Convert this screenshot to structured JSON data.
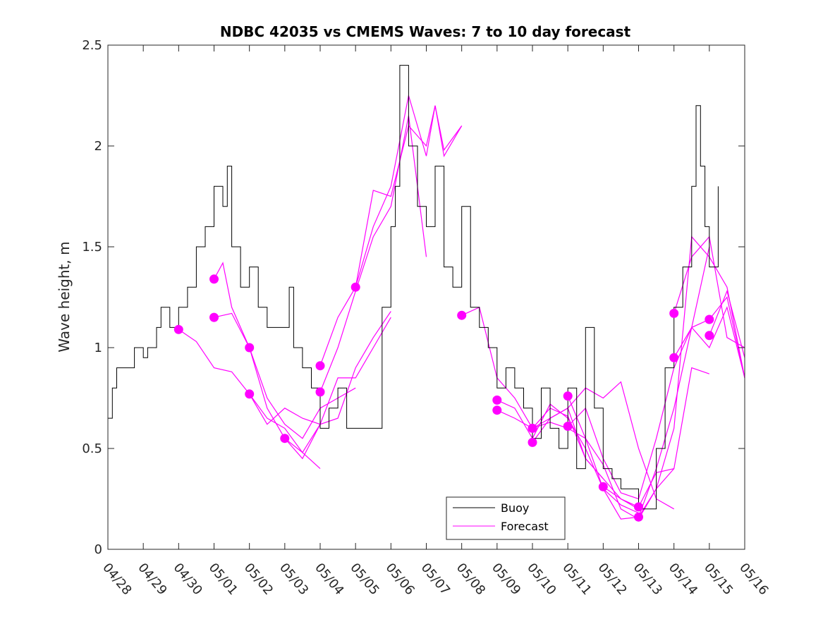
{
  "chart_data": {
    "type": "line",
    "title": "NDBC 42035 vs CMEMS Waves: 7 to 10 day forecast",
    "xlabel": "",
    "ylabel": "Wave height, m",
    "xlim": [
      "04/28",
      "05/16"
    ],
    "ylim": [
      0,
      2.5
    ],
    "x_ticks": [
      "04/28",
      "04/29",
      "04/30",
      "05/01",
      "05/02",
      "05/03",
      "05/04",
      "05/05",
      "05/06",
      "05/07",
      "05/08",
      "05/09",
      "05/10",
      "05/11",
      "05/12",
      "05/13",
      "05/14",
      "05/15",
      "05/16"
    ],
    "y_ticks": [
      "0",
      "0.5",
      "1",
      "1.5",
      "2",
      "2.5"
    ],
    "grid": false,
    "legend": {
      "position": "bottom-center",
      "entries": [
        "Buoy",
        "Forecast"
      ]
    },
    "colors": {
      "buoy": "#000000",
      "forecast": "#ff00ff"
    },
    "series": [
      {
        "name": "Buoy",
        "x": [
          "04/28 00:00",
          "04/28 03:00",
          "04/28 06:00",
          "04/28 09:00",
          "04/28 18:00",
          "04/29 00:00",
          "04/29 03:00",
          "04/29 09:00",
          "04/29 12:00",
          "04/29 18:00",
          "04/30 00:00",
          "04/30 06:00",
          "04/30 12:00",
          "04/30 18:00",
          "05/01 00:00",
          "05/01 06:00",
          "05/01 09:00",
          "05/01 12:00",
          "05/01 18:00",
          "05/02 00:00",
          "05/02 06:00",
          "05/02 12:00",
          "05/02 18:00",
          "05/03 00:00",
          "05/03 03:00",
          "05/03 06:00",
          "05/03 12:00",
          "05/03 18:00",
          "05/04 00:00",
          "05/04 06:00",
          "05/04 12:00",
          "05/04 18:00",
          "05/05 00:00",
          "05/05 12:00",
          "05/05 18:00",
          "05/06 00:00",
          "05/06 03:00",
          "05/06 06:00",
          "05/06 12:00",
          "05/06 18:00",
          "05/07 00:00",
          "05/07 06:00",
          "05/07 12:00",
          "05/07 18:00",
          "05/08 00:00",
          "05/08 06:00",
          "05/08 12:00",
          "05/08 18:00",
          "05/09 00:00",
          "05/09 06:00",
          "05/09 12:00",
          "05/09 18:00",
          "05/10 00:00",
          "05/10 06:00",
          "05/10 12:00",
          "05/10 18:00",
          "05/11 00:00",
          "05/11 06:00",
          "05/11 12:00",
          "05/11 18:00",
          "05/12 00:00",
          "05/12 06:00",
          "05/12 12:00",
          "05/12 18:00",
          "05/13 00:00",
          "05/13 06:00",
          "05/13 12:00",
          "05/13 18:00",
          "05/14 00:00",
          "05/14 06:00",
          "05/14 12:00",
          "05/14 15:00",
          "05/14 18:00",
          "05/14 21:00",
          "05/15 00:00",
          "05/15 06:00"
        ],
        "values": [
          0.65,
          0.8,
          0.9,
          0.9,
          1.0,
          0.95,
          1.0,
          1.1,
          1.2,
          1.1,
          1.2,
          1.3,
          1.5,
          1.6,
          1.8,
          1.7,
          1.9,
          1.5,
          1.3,
          1.4,
          1.2,
          1.1,
          1.1,
          1.1,
          1.3,
          1.0,
          0.9,
          0.8,
          0.6,
          0.7,
          0.8,
          0.6,
          0.6,
          0.6,
          1.2,
          1.6,
          1.8,
          2.4,
          2.0,
          1.7,
          1.6,
          1.9,
          1.4,
          1.3,
          1.7,
          1.2,
          1.1,
          1.0,
          0.8,
          0.9,
          0.8,
          0.7,
          0.55,
          0.8,
          0.6,
          0.5,
          0.8,
          0.4,
          1.1,
          0.7,
          0.4,
          0.35,
          0.3,
          0.3,
          0.2,
          0.2,
          0.5,
          0.9,
          1.2,
          1.4,
          1.8,
          2.2,
          1.9,
          1.6,
          1.4,
          1.8
        ]
      },
      {
        "name": "Forecast",
        "lines": [
          {
            "x": [
              "04/30 00:00",
              "04/30 12:00",
              "05/01 00:00",
              "05/01 12:00",
              "05/02 00:00",
              "05/02 12:00",
              "05/03 00:00",
              "05/03 12:00",
              "05/04 00:00"
            ],
            "values": [
              1.09,
              1.03,
              0.9,
              0.88,
              0.77,
              0.65,
              0.6,
              0.48,
              0.4
            ]
          },
          {
            "x": [
              "05/01 00:00",
              "05/01 06:00",
              "05/01 12:00",
              "05/02 00:00",
              "05/02 12:00",
              "05/03 00:00",
              "05/03 12:00",
              "05/04 00:00"
            ],
            "values": [
              1.34,
              1.42,
              1.2,
              1.0,
              0.7,
              0.55,
              0.48,
              0.62
            ]
          },
          {
            "x": [
              "05/01 00:00",
              "05/01 12:00",
              "05/02 00:00",
              "05/02 12:00",
              "05/03 00:00",
              "05/03 12:00",
              "05/04 00:00",
              "05/04 12:00",
              "05/05 00:00"
            ],
            "values": [
              1.15,
              1.17,
              1.0,
              0.75,
              0.62,
              0.55,
              0.7,
              0.75,
              0.8
            ]
          },
          {
            "x": [
              "05/02 00:00",
              "05/02 12:00",
              "05/03 00:00",
              "05/03 12:00",
              "05/04 00:00",
              "05/04 12:00",
              "05/05 00:00",
              "05/05 12:00",
              "05/06 00:00"
            ],
            "values": [
              0.77,
              0.62,
              0.7,
              0.65,
              0.62,
              0.65,
              0.9,
              1.05,
              1.18
            ]
          },
          {
            "x": [
              "05/03 00:00",
              "05/03 12:00",
              "05/04 00:00",
              "05/04 12:00",
              "05/05 00:00",
              "05/05 12:00",
              "05/06 00:00"
            ],
            "values": [
              0.55,
              0.45,
              0.62,
              0.85,
              0.85,
              1.0,
              1.15
            ]
          },
          {
            "x": [
              "05/04 00:00",
              "05/04 12:00",
              "05/05 00:00",
              "05/05 12:00",
              "05/06 00:00",
              "05/06 12:00",
              "05/07 00:00"
            ],
            "values": [
              0.78,
              1.0,
              1.28,
              1.55,
              1.7,
              2.15,
              1.45
            ]
          },
          {
            "x": [
              "05/04 00:00",
              "05/04 12:00",
              "05/05 00:00",
              "05/05 12:00",
              "05/06 00:00",
              "05/06 12:00",
              "05/07 00:00",
              "05/07 06:00",
              "05/07 12:00",
              "05/08 00:00"
            ],
            "values": [
              0.91,
              1.15,
              1.3,
              1.6,
              1.8,
              2.25,
              1.95,
              2.2,
              1.95,
              2.1
            ]
          },
          {
            "x": [
              "05/05 00:00",
              "05/05 12:00",
              "05/06 00:00",
              "05/06 12:00",
              "05/07 00:00",
              "05/07 06:00",
              "05/07 12:00",
              "05/08 00:00"
            ],
            "values": [
              1.3,
              1.78,
              1.75,
              2.1,
              2.0,
              2.2,
              1.98,
              2.1
            ]
          },
          {
            "x": [
              "05/08 00:00",
              "05/08 12:00",
              "05/09 00:00",
              "05/09 12:00",
              "05/10 00:00",
              "05/10 12:00",
              "05/11 00:00",
              "05/11 12:00",
              "05/12 00:00"
            ],
            "values": [
              1.16,
              1.2,
              0.85,
              0.75,
              0.6,
              0.65,
              0.7,
              0.45,
              0.35
            ]
          },
          {
            "x": [
              "05/09 00:00",
              "05/09 12:00",
              "05/10 00:00",
              "05/10 12:00",
              "05/11 00:00",
              "05/11 12:00",
              "05/12 00:00",
              "05/12 12:00",
              "05/13 00:00"
            ],
            "values": [
              0.74,
              0.7,
              0.55,
              0.72,
              0.65,
              0.5,
              0.3,
              0.22,
              0.18
            ]
          },
          {
            "x": [
              "05/09 00:00",
              "05/09 12:00",
              "05/10 00:00",
              "05/10 12:00",
              "05/11 00:00",
              "05/11 12:00",
              "05/12 00:00",
              "05/12 12:00",
              "05/13 00:00"
            ],
            "values": [
              0.69,
              0.65,
              0.6,
              0.7,
              0.66,
              0.45,
              0.35,
              0.25,
              0.2
            ]
          },
          {
            "x": [
              "05/10 00:00",
              "05/10 12:00",
              "05/11 00:00",
              "05/11 12:00",
              "05/12 00:00",
              "05/12 12:00",
              "05/13 00:00",
              "05/13 12:00",
              "05/14 00:00"
            ],
            "values": [
              0.6,
              0.63,
              0.6,
              0.55,
              0.42,
              0.2,
              0.15,
              0.3,
              0.4
            ]
          },
          {
            "x": [
              "05/10 00:00",
              "05/10 12:00",
              "05/11 00:00",
              "05/11 12:00",
              "05/12 00:00",
              "05/12 12:00",
              "05/13 00:00",
              "05/13 12:00",
              "05/14 00:00"
            ],
            "values": [
              0.53,
              0.65,
              0.7,
              0.8,
              0.75,
              0.83,
              0.5,
              0.25,
              0.2
            ]
          },
          {
            "x": [
              "05/11 00:00",
              "05/11 12:00",
              "05/12 00:00",
              "05/12 12:00",
              "05/13 00:00",
              "05/13 12:00",
              "05/14 00:00",
              "05/14 12:00",
              "05/15 00:00"
            ],
            "values": [
              0.76,
              0.55,
              0.3,
              0.15,
              0.16,
              0.4,
              0.7,
              1.1,
              1.5
            ]
          },
          {
            "x": [
              "05/11 00:00",
              "05/11 12:00",
              "05/12 00:00",
              "05/12 12:00",
              "05/13 00:00",
              "05/13 12:00",
              "05/14 00:00",
              "05/14 12:00",
              "05/15 00:00",
              "05/15 12:00",
              "05/16 00:00"
            ],
            "values": [
              0.61,
              0.7,
              0.45,
              0.28,
              0.25,
              0.55,
              0.9,
              1.1,
              1.0,
              1.2,
              0.85
            ]
          },
          {
            "x": [
              "05/12 00:00",
              "05/12 12:00",
              "05/13 00:00",
              "05/13 12:00",
              "05/14 00:00",
              "05/14 12:00",
              "05/15 00:00"
            ],
            "values": [
              0.31,
              0.25,
              0.21,
              0.38,
              0.4,
              0.9,
              0.87
            ]
          },
          {
            "x": [
              "05/13 00:00",
              "05/13 12:00",
              "05/14 00:00",
              "05/14 12:00",
              "05/15 00:00",
              "05/15 12:00",
              "05/16 00:00"
            ],
            "values": [
              0.16,
              0.3,
              0.6,
              1.55,
              1.45,
              1.3,
              0.85
            ]
          },
          {
            "x": [
              "05/14 00:00",
              "05/14 12:00",
              "05/15 00:00",
              "05/15 12:00",
              "05/16 00:00"
            ],
            "values": [
              1.17,
              1.45,
              1.55,
              1.05,
              1.0
            ]
          },
          {
            "x": [
              "05/14 00:00",
              "05/14 12:00",
              "05/15 00:00",
              "05/15 12:00",
              "05/16 00:00"
            ],
            "values": [
              0.95,
              1.1,
              1.14,
              1.25,
              0.85
            ]
          },
          {
            "x": [
              "05/15 00:00",
              "05/15 12:00",
              "05/16 00:00"
            ],
            "values": [
              1.06,
              1.28,
              0.95
            ]
          }
        ],
        "markers": {
          "x": [
            "04/30 00:00",
            "05/01 00:00",
            "05/01 00:00",
            "05/02 00:00",
            "05/02 00:00",
            "05/03 00:00",
            "05/04 00:00",
            "05/04 00:00",
            "05/05 00:00",
            "05/08 00:00",
            "05/09 00:00",
            "05/09 00:00",
            "05/10 00:00",
            "05/10 00:00",
            "05/11 00:00",
            "05/11 00:00",
            "05/12 00:00",
            "05/13 00:00",
            "05/13 00:00",
            "05/14 00:00",
            "05/14 00:00",
            "05/15 00:00",
            "05/15 00:00"
          ],
          "values": [
            1.09,
            1.34,
            1.15,
            1.0,
            0.77,
            0.55,
            0.91,
            0.78,
            1.3,
            1.16,
            0.74,
            0.69,
            0.6,
            0.53,
            0.76,
            0.61,
            0.31,
            0.21,
            0.16,
            1.17,
            0.95,
            1.14,
            1.06
          ]
        }
      }
    ]
  }
}
